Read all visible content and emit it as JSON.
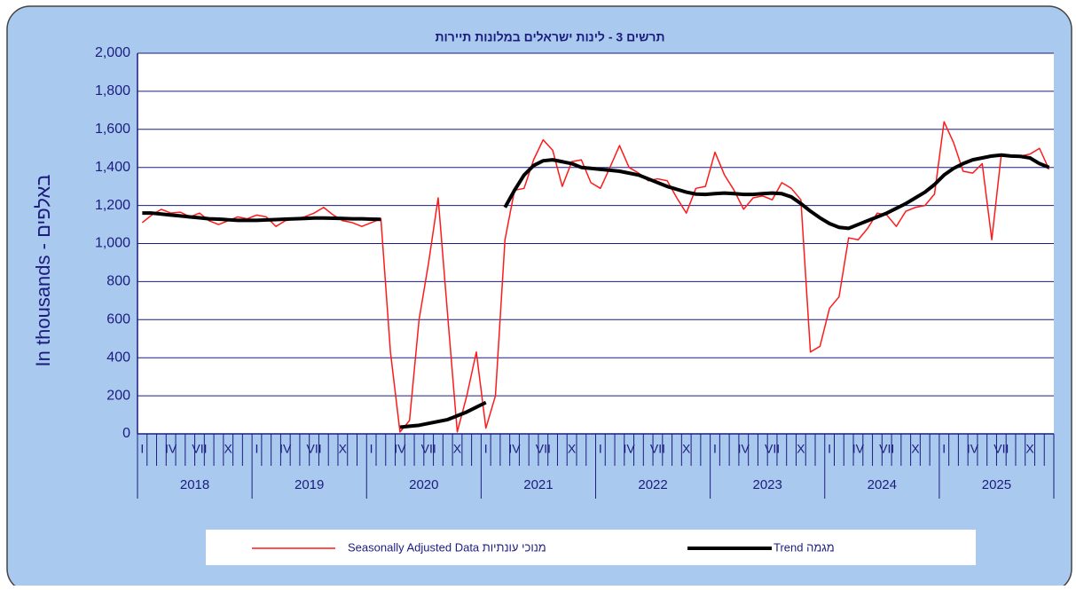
{
  "chart_data": {
    "type": "line",
    "title": "תרשים 3 - לינות ישראלים במלונות תיירות",
    "y_label": "In thousands - באלפים",
    "categories": [
      "I",
      null,
      null,
      "IV",
      null,
      null,
      "VII",
      null,
      null,
      "X",
      null,
      null,
      "I",
      null,
      null,
      "IV",
      null,
      null,
      "VII",
      null,
      null,
      "X",
      null,
      null,
      "I",
      null,
      null,
      "IV",
      null,
      null,
      "VII",
      null,
      null,
      "X",
      null,
      null,
      "I",
      null,
      null,
      "IV",
      null,
      null,
      "VII",
      null,
      null,
      "X",
      null,
      null,
      "I",
      null,
      null,
      "IV",
      null,
      null,
      "VII",
      null,
      null,
      "X",
      null,
      null,
      "I",
      null,
      null,
      "IV",
      null,
      null,
      "VII",
      null,
      null,
      "X",
      null,
      null,
      "I",
      null,
      null,
      "IV",
      null,
      null,
      "VII",
      null,
      null,
      "X",
      null,
      null,
      "I",
      null,
      null,
      "IV",
      null,
      null,
      "VII",
      null,
      null,
      "X",
      null,
      null
    ],
    "year_labels": [
      "2018",
      "2019",
      "2020",
      "2021",
      "2022",
      "2023",
      "2024",
      "2025"
    ],
    "series": [
      {
        "name": "Seasonally Adjusted  Data  מנוכי עונתיות",
        "color": "#ff1a1a",
        "width": 1.5,
        "values": [
          1110,
          1150,
          1180,
          1160,
          1165,
          1140,
          1160,
          1120,
          1100,
          1120,
          1140,
          1130,
          1150,
          1140,
          1090,
          1120,
          1130,
          1140,
          1160,
          1190,
          1150,
          1120,
          1110,
          1090,
          1110,
          1130,
          430,
          10,
          70,
          600,
          900,
          1240,
          620,
          10,
          200,
          430,
          30,
          200,
          1020,
          1280,
          1290,
          1440,
          1545,
          1490,
          1300,
          1430,
          1440,
          1320,
          1290,
          1400,
          1515,
          1400,
          1370,
          1330,
          1340,
          1330,
          1240,
          1160,
          1290,
          1300,
          1480,
          1360,
          1280,
          1180,
          1240,
          1250,
          1230,
          1320,
          1290,
          1230,
          430,
          460,
          660,
          720,
          1030,
          1020,
          1080,
          1160,
          1150,
          1090,
          1170,
          1190,
          1200,
          1260,
          1640,
          1530,
          1380,
          1370,
          1420,
          1020,
          1470,
          1460,
          1460,
          1470,
          1500,
          1390
        ]
      },
      {
        "name": "Trend מגמה",
        "color": "#000000",
        "width": 4,
        "values": [
          1160,
          1160,
          1155,
          1150,
          1145,
          1140,
          1135,
          1130,
          1128,
          1125,
          1122,
          1122,
          1122,
          1124,
          1126,
          1128,
          1130,
          1132,
          1134,
          1134,
          1133,
          1132,
          1130,
          1130,
          1128,
          1127,
          null,
          35,
          40,
          45,
          55,
          65,
          75,
          95,
          115,
          140,
          165,
          null,
          1190,
          1280,
          1360,
          1410,
          1435,
          1440,
          1430,
          1420,
          1400,
          1395,
          1390,
          1385,
          1380,
          1370,
          1360,
          1340,
          1320,
          1300,
          1285,
          1270,
          1260,
          1258,
          1262,
          1265,
          1262,
          1258,
          1258,
          1262,
          1265,
          1262,
          1245,
          1210,
          1170,
          1135,
          1105,
          1085,
          1080,
          1100,
          1120,
          1140,
          1160,
          1185,
          1210,
          1240,
          1270,
          1310,
          1360,
          1395,
          1420,
          1440,
          1450,
          1460,
          1465,
          1460,
          1458,
          1450,
          1420,
          1400
        ]
      }
    ],
    "ylim": [
      0,
      2000
    ],
    "yticks": [
      0,
      200,
      400,
      600,
      800,
      {
        "value": 1000,
        "label": "1,000"
      },
      {
        "value": 1200,
        "label": "1,200"
      },
      {
        "value": 1400,
        "label": "1,400"
      },
      {
        "value": 1600,
        "label": "1,600"
      },
      {
        "value": 1800,
        "label": "1,800"
      },
      {
        "value": 2000,
        "label": "2,000"
      }
    ],
    "grid": true
  }
}
